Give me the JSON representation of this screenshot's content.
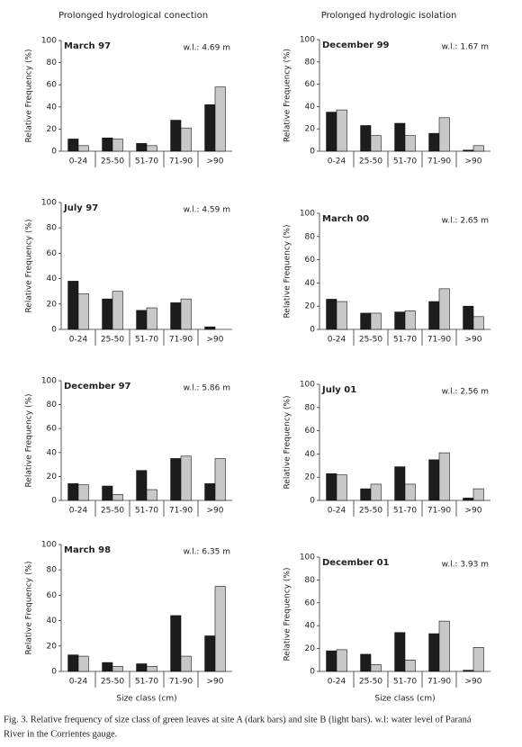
{
  "column_titles": [
    "Prolonged hydrological conection",
    "Prolonged hydrologic isolation"
  ],
  "caption": [
    "Fig. 3. Relative frequency of size class of green leaves at site A (dark bars) and site B (light bars). w.l: water level of Paraná",
    "River in the Corrientes gauge."
  ],
  "chart_data": [
    {
      "type": "bar",
      "title": "March 97",
      "annotation": "w.l.: 4.69 m",
      "ylabel": "Relative Frequency (%)",
      "categories": [
        "0-24",
        "25-50",
        "51-70",
        "71-90",
        ">90"
      ],
      "series": [
        {
          "color": "#1c1c1c",
          "values": [
            11,
            12,
            7,
            28,
            42
          ]
        },
        {
          "color": "#c8c8c8",
          "values": [
            5,
            11,
            5,
            21,
            58
          ]
        }
      ],
      "ylim": [
        0,
        100
      ],
      "yticks": [
        0,
        20,
        40,
        60,
        80,
        100
      ]
    },
    {
      "type": "bar",
      "title": "December 99",
      "annotation": "w.l.: 1.67 m",
      "ylabel": "Relative Frequency (%)",
      "categories": [
        "0-24",
        "25-50",
        "51-70",
        "71-90",
        ">90"
      ],
      "series": [
        {
          "color": "#1c1c1c",
          "values": [
            35,
            23,
            25,
            16,
            1
          ]
        },
        {
          "color": "#c8c8c8",
          "values": [
            37,
            14,
            14,
            30,
            5
          ]
        }
      ],
      "ylim": [
        0,
        100
      ],
      "yticks": [
        0,
        20,
        40,
        60,
        80,
        100
      ]
    },
    {
      "type": "bar",
      "title": "July 97",
      "annotation": "w.l.: 4.59 m",
      "ylabel": "Relative Frequency (%)",
      "categories": [
        "0-24",
        "25-50",
        "51-70",
        "71-90",
        ">90"
      ],
      "series": [
        {
          "color": "#1c1c1c",
          "values": [
            38,
            24,
            15,
            21,
            2
          ]
        },
        {
          "color": "#c8c8c8",
          "values": [
            28,
            30,
            17,
            24,
            0
          ]
        }
      ],
      "ylim": [
        0,
        100
      ],
      "yticks": [
        0,
        20,
        40,
        60,
        80,
        100
      ]
    },
    {
      "type": "bar",
      "title": "March 00",
      "annotation": "w.l.: 2.65 m",
      "ylabel": "Relative Frequency (%)",
      "categories": [
        "0-24",
        "25-50",
        "51-70",
        "71-90",
        ">90"
      ],
      "series": [
        {
          "color": "#1c1c1c",
          "values": [
            26,
            14,
            15,
            24,
            20
          ]
        },
        {
          "color": "#c8c8c8",
          "values": [
            24,
            14,
            16,
            35,
            11
          ]
        }
      ],
      "ylim": [
        0,
        100
      ],
      "yticks": [
        0,
        20,
        40,
        60,
        80,
        100
      ]
    },
    {
      "type": "bar",
      "title": "December 97",
      "annotation": "w.l.: 5.86 m",
      "ylabel": "Relative Frequency (%)",
      "categories": [
        "0-24",
        "25-50",
        "51-70",
        "71-90",
        ">90"
      ],
      "series": [
        {
          "color": "#1c1c1c",
          "values": [
            14,
            12,
            25,
            35,
            14
          ]
        },
        {
          "color": "#c8c8c8",
          "values": [
            13,
            5,
            9,
            37,
            35
          ]
        }
      ],
      "ylim": [
        0,
        100
      ],
      "yticks": [
        0,
        20,
        40,
        60,
        80,
        100
      ]
    },
    {
      "type": "bar",
      "title": "July 01",
      "annotation": "w.l.: 2.56 m",
      "ylabel": "Relative Frequency (%)",
      "categories": [
        "0-24",
        "25-50",
        "51-70",
        "71-90",
        ">90"
      ],
      "series": [
        {
          "color": "#1c1c1c",
          "values": [
            23,
            10,
            29,
            35,
            2
          ]
        },
        {
          "color": "#c8c8c8",
          "values": [
            22,
            14,
            14,
            41,
            10
          ]
        }
      ],
      "ylim": [
        0,
        100
      ],
      "yticks": [
        0,
        20,
        40,
        60,
        80,
        100
      ]
    },
    {
      "type": "bar",
      "title": "March 98",
      "annotation": "w.l.: 6.35 m",
      "ylabel": "Relative Frequency (%)",
      "xlabel": "Size class (cm)",
      "categories": [
        "0-24",
        "25-50",
        "51-70",
        "71-90",
        ">90"
      ],
      "series": [
        {
          "color": "#1c1c1c",
          "values": [
            13,
            7,
            6,
            44,
            28
          ]
        },
        {
          "color": "#c8c8c8",
          "values": [
            12,
            4,
            4,
            12,
            67
          ]
        }
      ],
      "ylim": [
        0,
        100
      ],
      "yticks": [
        0,
        20,
        40,
        60,
        80,
        100
      ]
    },
    {
      "type": "bar",
      "title": "December 01",
      "annotation": "w.l.: 3.93 m",
      "ylabel": "Relative Frequency (%)",
      "xlabel": "Size class (cm)",
      "categories": [
        "0-24",
        "25-50",
        "51-70",
        "71-90",
        ">90"
      ],
      "series": [
        {
          "color": "#1c1c1c",
          "values": [
            18,
            15,
            34,
            33,
            1
          ]
        },
        {
          "color": "#c8c8c8",
          "values": [
            19,
            6,
            10,
            44,
            21
          ]
        }
      ],
      "ylim": [
        0,
        100
      ],
      "yticks": [
        0,
        20,
        40,
        60,
        80,
        100
      ]
    }
  ]
}
